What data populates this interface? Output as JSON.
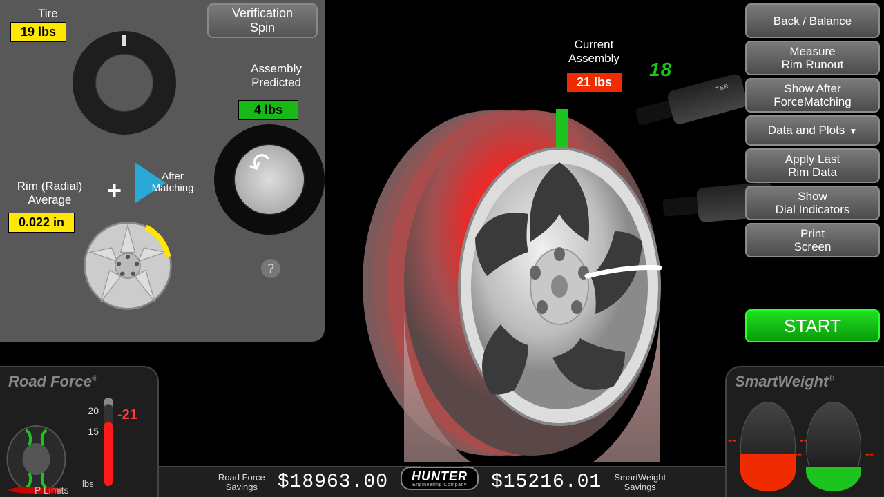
{
  "panel": {
    "tire_label": "Tire",
    "tire_value": "19 lbs",
    "verify_l1": "Verification",
    "verify_l2": "Spin",
    "predicted_l1": "Assembly",
    "predicted_l2": "Predicted",
    "predicted_value": "4 lbs",
    "rim_l1": "Rim (Radial)",
    "rim_l2": "Average",
    "rim_value": "0.022 in",
    "plus": "+",
    "after_l1": "After",
    "after_l2": "Matching",
    "help": "?"
  },
  "current": {
    "l1": "Current",
    "l2": "Assembly",
    "value": "21 lbs",
    "counter": "18"
  },
  "buttons": {
    "b1": "Back / Balance",
    "b2a": "Measure",
    "b2b": "Rim Runout",
    "b3a": "Show After",
    "b3b": "ForceMatching",
    "b4": "Data and Plots",
    "b5a": "Apply Last",
    "b5b": "Rim Data",
    "b6a": "Show",
    "b6b": "Dial Indicators",
    "b7a": "Print",
    "b7b": "Screen",
    "start": "START"
  },
  "roadforce": {
    "brand": "Road Force",
    "gauge_value": "21",
    "tick_hi": "20",
    "tick_lo": "15",
    "unit": "lbs",
    "plimits": "P Limits",
    "fill_pct": 85
  },
  "smartweight": {
    "brand": "SmartWeight"
  },
  "bottom": {
    "rf_lbl1": "Road Force",
    "rf_lbl2": "Savings",
    "rf_amount": "$18963.00",
    "sw_lbl1": "SmartWeight",
    "sw_lbl2": "Savings",
    "sw_amount": "$15216.01",
    "hunter": "HUNTER",
    "hunter_sub": "Engineering Company"
  },
  "colors": {
    "yellow": "#ffe800",
    "green": "#18b816",
    "red": "#f02b00",
    "accent_green": "#1ec41e"
  }
}
